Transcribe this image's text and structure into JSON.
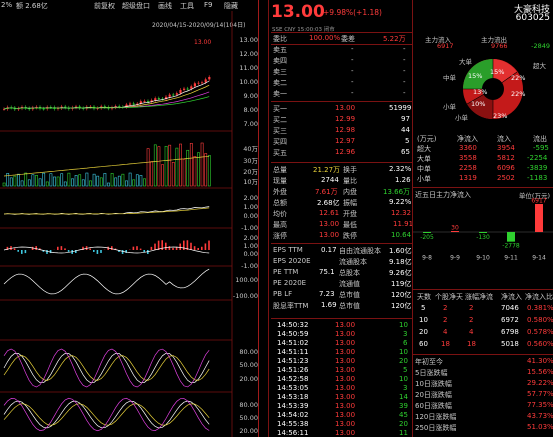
{
  "toolbar": {
    "left_pct": "2%",
    "left_amount": "额 2.68亿",
    "items": [
      "前复权",
      "超级盘口",
      "画线",
      "工具",
      "F9",
      "隐藏"
    ],
    "date_range": "2020/04/15-2020/09/14(104日)"
  },
  "chart": {
    "price_axis": [
      "13.00",
      "12.00",
      "11.00",
      "10.00",
      "9.00",
      "8.00",
      "7.00"
    ],
    "last_price_tag": "13.00",
    "vol_axis": [
      "40万",
      "30万",
      "20万",
      "10万"
    ],
    "macd_axis": [
      "2.00",
      "1.00",
      "0.00",
      "-1.00"
    ],
    "macd2_axis": [
      "2.00",
      "1.00",
      "0.00",
      "-1.00"
    ],
    "cci_axis": [
      "100.00",
      "-100.00"
    ],
    "kdj_axis": [
      "80.00",
      "50.00",
      "20.00"
    ],
    "rsi_axis": [
      "80.00",
      "50.00",
      "20.00"
    ]
  },
  "header": {
    "price": "13.00",
    "change": "+9.98%(+1.18)",
    "name": "大豪科技",
    "code": "603025",
    "meta_sse": "SSE",
    "meta_cny": "CNY",
    "meta_time": "15:00:03",
    "meta_status": "闭市"
  },
  "order_book": {
    "weibi_label": "委比",
    "weibi_value": "100.00%",
    "weicha_label": "委差",
    "weicha_value": "5.22万",
    "sells": [
      {
        "label": "卖五",
        "price": "-",
        "vol": "-"
      },
      {
        "label": "卖四",
        "price": "-",
        "vol": "-"
      },
      {
        "label": "卖三",
        "price": "-",
        "vol": "-"
      },
      {
        "label": "卖二",
        "price": "-",
        "vol": "-"
      },
      {
        "label": "卖一",
        "price": "-",
        "vol": "-"
      }
    ],
    "buys": [
      {
        "label": "买一",
        "price": "13.00",
        "vol": "51999"
      },
      {
        "label": "买二",
        "price": "12.99",
        "vol": "97"
      },
      {
        "label": "买三",
        "price": "12.98",
        "vol": "44"
      },
      {
        "label": "买四",
        "price": "12.97",
        "vol": "5"
      },
      {
        "label": "买五",
        "price": "12.96",
        "vol": "65"
      }
    ]
  },
  "stats": [
    {
      "l1": "总量",
      "v1": "21.27万",
      "c1": "yellow",
      "l2": "换手",
      "v2": "2.32%",
      "c2": "white"
    },
    {
      "l1": "现量",
      "v1": "2744",
      "c1": "white",
      "l2": "量比",
      "v2": "1.26",
      "c2": "white"
    },
    {
      "l1": "外盘",
      "v1": "7.61万",
      "c1": "red",
      "l2": "内盘",
      "v2": "13.66万",
      "c2": "green"
    },
    {
      "l1": "总额",
      "v1": "2.68亿",
      "c1": "white",
      "l2": "振幅",
      "v2": "9.22%",
      "c2": "white"
    },
    {
      "l1": "均价",
      "v1": "12.61",
      "c1": "red",
      "l2": "开盘",
      "v2": "12.32",
      "c2": "red"
    },
    {
      "l1": "最高",
      "v1": "13.00",
      "c1": "red",
      "l2": "最低",
      "v2": "11.91",
      "c2": "red"
    },
    {
      "l1": "涨停",
      "v1": "13.00",
      "c1": "red",
      "l2": "跌停",
      "v2": "10.64",
      "c2": "green"
    }
  ],
  "fundamentals": [
    {
      "l1": "EPS TTM",
      "v1": "0.17",
      "l2": "自由流通股本",
      "v2": "1.60亿"
    },
    {
      "l1": "EPS 2020E",
      "v1": "",
      "l2": "流通股本",
      "v2": "9.18亿"
    },
    {
      "l1": "PE TTM",
      "v1": "75.1",
      "l2": "总股本",
      "v2": "9.26亿"
    },
    {
      "l1": "PE 2020E",
      "v1": "",
      "l2": "流通值",
      "v2": "119亿"
    },
    {
      "l1": "PB LF",
      "v1": "7.23",
      "l2": "总市值",
      "v2": "120亿"
    },
    {
      "l1": "股息率TTM",
      "v1": "1.69",
      "l2": "总市值",
      "v2": "120亿"
    }
  ],
  "ticks": [
    {
      "time": "14:50:32",
      "price": "13.00",
      "vol": "10"
    },
    {
      "time": "14:50:59",
      "price": "13.00",
      "vol": "3"
    },
    {
      "time": "14:51:02",
      "price": "13.00",
      "vol": "6"
    },
    {
      "time": "14:51:11",
      "price": "13.00",
      "vol": "10"
    },
    {
      "time": "14:51:23",
      "price": "13.00",
      "vol": "20"
    },
    {
      "time": "14:51:26",
      "price": "13.00",
      "vol": "5"
    },
    {
      "time": "14:52:58",
      "price": "13.00",
      "vol": "10"
    },
    {
      "time": "14:53:05",
      "price": "13.00",
      "vol": "3"
    },
    {
      "time": "14:53:18",
      "price": "13.00",
      "vol": "14"
    },
    {
      "time": "14:53:39",
      "price": "13.00",
      "vol": "39"
    },
    {
      "time": "14:54:02",
      "price": "13.00",
      "vol": "45"
    },
    {
      "time": "14:55:38",
      "price": "13.00",
      "vol": "20"
    },
    {
      "time": "14:56:11",
      "price": "13.00",
      "vol": "11"
    }
  ],
  "capital_flow": {
    "title_in": "主力流入",
    "title_out": "主力流出",
    "in_value": "6917",
    "out_value": "9766",
    "net_value": "-2849",
    "pie_labels": {
      "big_top": "大单",
      "super_right": "超大",
      "mid_left": "中单",
      "small_left": "小单",
      "small_bottom": "小单"
    },
    "pie_pcts": [
      "15%",
      "22%",
      "23%",
      "10%",
      "13%",
      "15%",
      "22%"
    ],
    "table_unit": "(万元)",
    "table_headers": [
      "净流入",
      "流入",
      "流出"
    ],
    "rows": [
      {
        "name": "超大",
        "net": "3360",
        "in": "3954",
        "out": "-595"
      },
      {
        "name": "大单",
        "net": "3558",
        "in": "5812",
        "out": "-2254"
      },
      {
        "name": "中单",
        "net": "2258",
        "in": "6096",
        "out": "-3839"
      },
      {
        "name": "小单",
        "net": "1319",
        "in": "2502",
        "out": "-1183"
      }
    ]
  },
  "five_day": {
    "title": "近五日主力净流入",
    "unit": "单位(万元)",
    "bars": [
      {
        "date": "9-8",
        "value": -205
      },
      {
        "date": "9-9",
        "value": 30
      },
      {
        "date": "9-10",
        "value": -130
      },
      {
        "date": "9-11",
        "value": -2778
      },
      {
        "date": "9-14",
        "value": 6917
      }
    ],
    "labels": [
      "-205",
      "30",
      "-130",
      "-2778",
      "6917"
    ]
  },
  "period_table": {
    "headers": [
      "天数",
      "个股净天",
      "涨幅净流",
      "净流入",
      "净流入比"
    ],
    "rows": [
      [
        "5",
        "2",
        "2",
        "7046",
        "0.381%"
      ],
      [
        "10",
        "2",
        "2",
        "6972",
        "0.580%"
      ],
      [
        "20",
        "4",
        "4",
        "6798",
        "0.578%"
      ],
      [
        "60",
        "18",
        "18",
        "5018",
        "0.560%"
      ]
    ]
  },
  "returns": [
    {
      "label": "年初至今",
      "value": "41.30%"
    },
    {
      "label": "5日涨跌幅",
      "value": "15.56%"
    },
    {
      "label": "10日涨跌幅",
      "value": "29.22%"
    },
    {
      "label": "20日涨跌幅",
      "value": "57.77%"
    },
    {
      "label": "60日涨跌幅",
      "value": "77.35%"
    },
    {
      "label": "120日涨跌幅",
      "value": "43.73%"
    },
    {
      "label": "250日涨跌幅",
      "value": "51.03%"
    }
  ],
  "colors": {
    "up": "#ff3b3b",
    "down": "#2fd12f",
    "bg": "#000000",
    "grid": "#7a1212"
  }
}
